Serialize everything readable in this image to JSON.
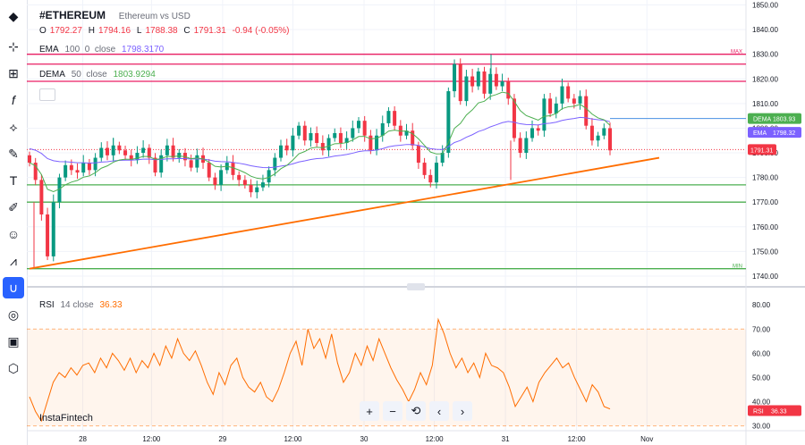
{
  "symbol": "#ETHEREUM",
  "description": "Ethereum vs USD",
  "ohlc": {
    "o_label": "O",
    "o": "1792.27",
    "h_label": "H",
    "h": "1794.16",
    "l_label": "L",
    "l": "1788.38",
    "c_label": "C",
    "c": "1791.31",
    "change": "-0.94 (-0.05%)"
  },
  "ema": {
    "name": "EMA",
    "params": "100  0  close",
    "value": "1798.3170",
    "color": "#7b61ff"
  },
  "dema": {
    "name": "DEMA",
    "params": "50  close",
    "value": "1803.9294",
    "color": "#4caf50"
  },
  "rsi": {
    "name": "RSI",
    "params": "14  close",
    "value": "36.33",
    "color": "#ff6d00"
  },
  "watermark": "InstaFintech",
  "nav_buttons": [
    "+",
    "−",
    "⟲",
    "‹",
    "›"
  ],
  "toolbar_icons": [
    "ethereum-logo-icon",
    "cursor-icon",
    "crosshair-icon",
    "fx-icon",
    "pattern-icon",
    "brush-icon",
    "text-icon",
    "pen-icon",
    "emoji-icon",
    "ruler-icon",
    "magnet-icon",
    "eye-off-icon",
    "lock-icon",
    "settings-icon"
  ],
  "chart_data": {
    "type": "candlestick",
    "price_axis": {
      "ticks": [
        1740,
        1750,
        1760,
        1770,
        1780,
        1790,
        1800,
        1810,
        1820,
        1830,
        1840,
        1850
      ],
      "labels": [
        "1740.00",
        "1750.00",
        "1760.00",
        "1770.00",
        "1780.00",
        "1790.00",
        "1800.00",
        "1810.00",
        "1820.00",
        "1830.00",
        "1840.00",
        "1850.00"
      ],
      "ylim": [
        1736,
        1852
      ]
    },
    "time_axis": [
      {
        "label": "28",
        "t": 0.07
      },
      {
        "label": "12:00",
        "t": 0.156
      },
      {
        "label": "29",
        "t": 0.245
      },
      {
        "label": "12:00",
        "t": 0.333
      },
      {
        "label": "30",
        "t": 0.422
      },
      {
        "label": "12:00",
        "t": 0.51
      },
      {
        "label": "31",
        "t": 0.599
      },
      {
        "label": "12:00",
        "t": 0.688
      },
      {
        "label": "Nov",
        "t": 0.776
      }
    ],
    "horizontal_levels": [
      {
        "name": "max-line",
        "price": 1830,
        "color": "#e91e63",
        "label": "MAX"
      },
      {
        "name": "resistance-1",
        "price": 1826,
        "color": "#e91e63"
      },
      {
        "name": "resistance-2",
        "price": 1819,
        "color": "#e91e63"
      },
      {
        "name": "support-1",
        "price": 1777,
        "color": "#4caf50"
      },
      {
        "name": "support-2",
        "price": 1770,
        "color": "#4caf50"
      },
      {
        "name": "min-line",
        "price": 1743,
        "color": "#4caf50",
        "label": "MIN"
      }
    ],
    "trendline": {
      "from": {
        "t": 0.0,
        "price": 1743
      },
      "to": {
        "t": 0.82,
        "price": 1788
      },
      "color": "#ff6d00"
    },
    "price_labels": [
      {
        "name": "DEMA",
        "value": "1803.93",
        "color": "#4caf50",
        "price": 1803.93
      },
      {
        "name": "EMA",
        "value": "1798.32",
        "color": "#7b61ff",
        "price": 1798.32
      },
      {
        "name": "close",
        "value": "1791.31",
        "color": "#f23645",
        "price": 1791.31
      }
    ],
    "close_path": [
      1786,
      1779,
      1765,
      1748,
      1770,
      1780,
      1785,
      1783,
      1782,
      1786,
      1783,
      1788,
      1792,
      1789,
      1793,
      1791,
      1789,
      1787,
      1790,
      1792,
      1788,
      1782,
      1789,
      1793,
      1788,
      1790,
      1787,
      1784,
      1789,
      1786,
      1780,
      1777,
      1783,
      1786,
      1781,
      1779,
      1777,
      1774,
      1776,
      1778,
      1783,
      1788,
      1793,
      1791,
      1797,
      1801,
      1795,
      1798,
      1794,
      1791,
      1796,
      1798,
      1794,
      1796,
      1800,
      1803,
      1797,
      1791,
      1797,
      1802,
      1807,
      1801,
      1797,
      1799,
      1793,
      1786,
      1781,
      1778,
      1786,
      1790,
      1815,
      1826,
      1811,
      1821,
      1817,
      1823,
      1814,
      1822,
      1817,
      1819,
      1812,
      1796,
      1790,
      1796,
      1800,
      1799,
      1812,
      1806,
      1810,
      1817,
      1812,
      1810,
      1813,
      1801,
      1795,
      1797,
      1800,
      1791
    ],
    "rsi_axis": {
      "ticks": [
        30,
        40,
        50,
        60,
        70,
        80
      ],
      "labels": [
        "30.00",
        "40.00",
        "50.00",
        "60.00",
        "70.00",
        "80.00"
      ],
      "ylim": [
        28,
        86
      ],
      "band": [
        30,
        70
      ]
    },
    "rsi_values": [
      42,
      36,
      32,
      40,
      48,
      52,
      50,
      54,
      51,
      55,
      56,
      52,
      58,
      54,
      60,
      57,
      53,
      58,
      52,
      57,
      54,
      60,
      55,
      63,
      58,
      66,
      60,
      57,
      61,
      55,
      48,
      43,
      52,
      47,
      55,
      58,
      50,
      46,
      44,
      48,
      42,
      40,
      45,
      52,
      60,
      65,
      55,
      70,
      62,
      66,
      58,
      68,
      56,
      48,
      52,
      60,
      55,
      63,
      57,
      66,
      60,
      54,
      49,
      45,
      40,
      45,
      52,
      47,
      55,
      74,
      68,
      60,
      54,
      58,
      52,
      56,
      50,
      60,
      55,
      54,
      52,
      46,
      38,
      42,
      46,
      40,
      48,
      52,
      55,
      58,
      54,
      56,
      50,
      45,
      40,
      47,
      44,
      38,
      37
    ]
  }
}
